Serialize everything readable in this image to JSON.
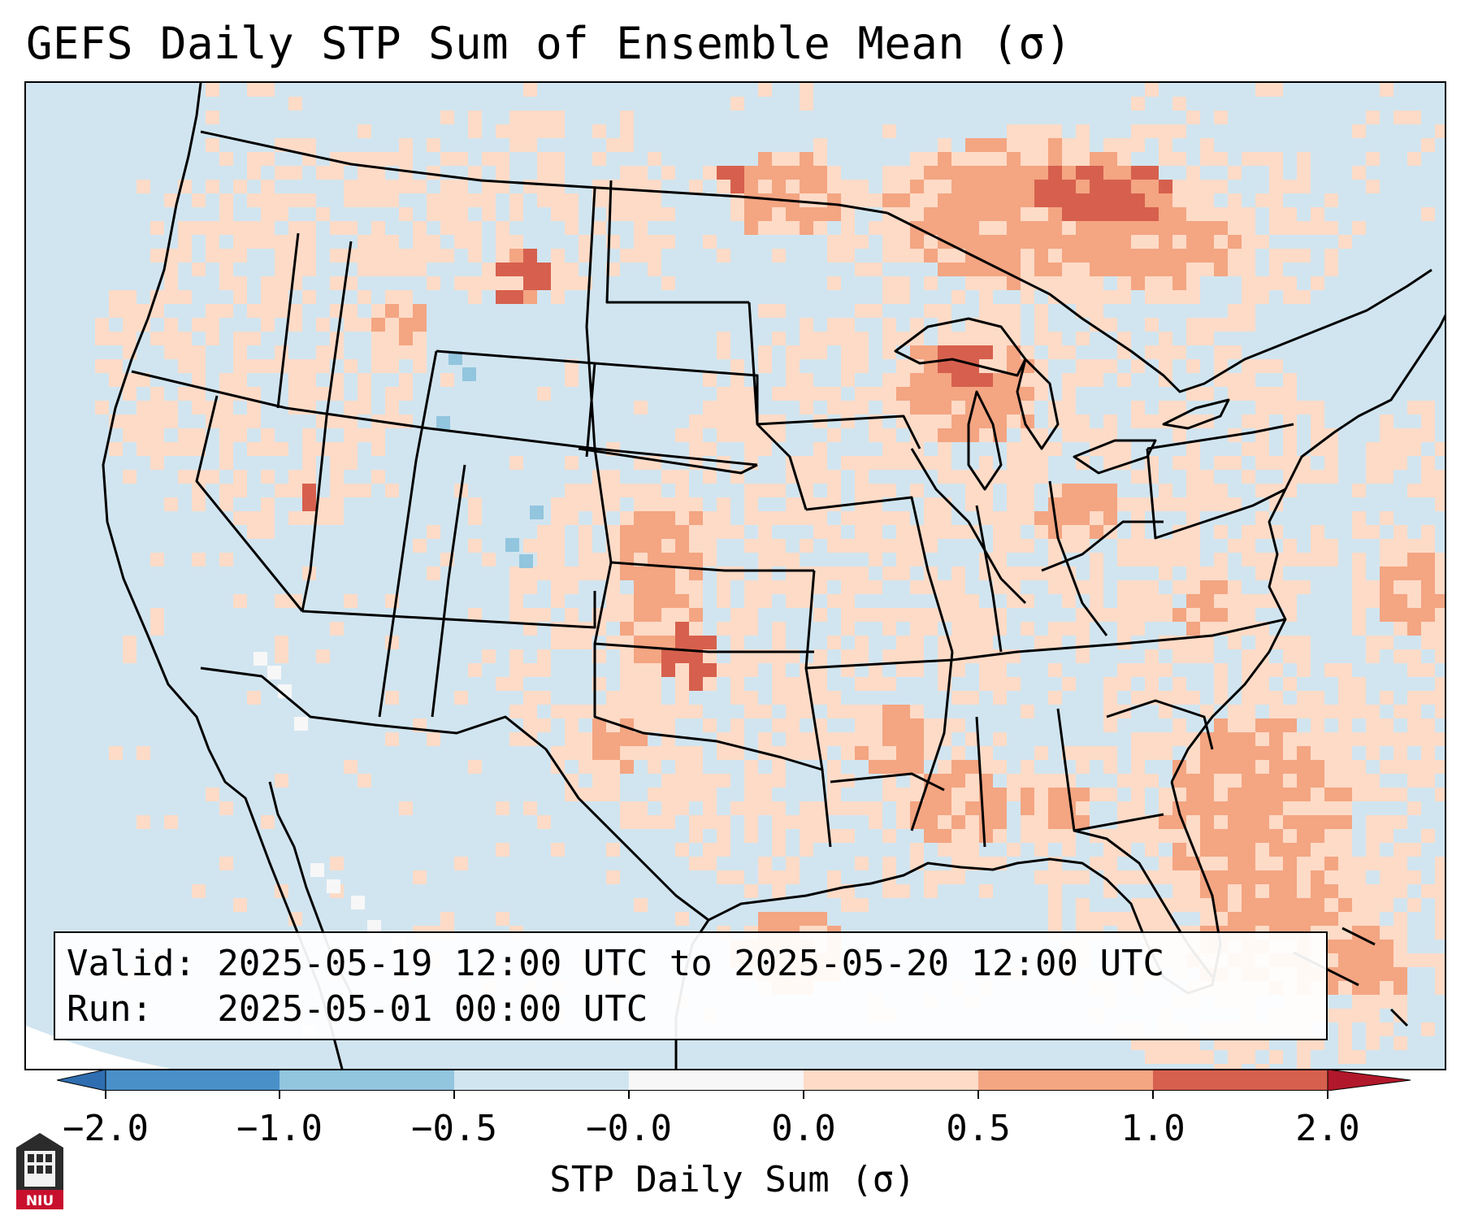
{
  "title": "GEFS Daily STP Sum of Ensemble Mean (σ)",
  "info": {
    "valid_line": "Valid: 2025-05-19 12:00 UTC to 2025-05-20 12:00 UTC",
    "run_line": "Run:   2025-05-01 00:00 UTC"
  },
  "colorbar": {
    "label": "STP Daily Sum (σ)",
    "ticks": [
      "−2.0",
      "−1.0",
      "−0.5",
      "−0.0",
      "0.0",
      "0.5",
      "1.0",
      "2.0"
    ],
    "bins": [
      {
        "min": -3.0,
        "max": -2.0,
        "color": "#2f6eb0"
      },
      {
        "min": -2.0,
        "max": -1.0,
        "color": "#4a90c8"
      },
      {
        "min": -1.0,
        "max": -0.5,
        "color": "#92c5de"
      },
      {
        "min": -0.5,
        "max": -0.0,
        "color": "#d1e5f0"
      },
      {
        "min": -0.0,
        "max": 0.0,
        "color": "#f7f7f7"
      },
      {
        "min": 0.0,
        "max": 0.5,
        "color": "#fddbc7"
      },
      {
        "min": 0.5,
        "max": 1.0,
        "color": "#f4a582"
      },
      {
        "min": 1.0,
        "max": 2.0,
        "color": "#d6604d"
      },
      {
        "min": 2.0,
        "max": 3.0,
        "color": "#b2182b"
      }
    ]
  },
  "colors": {
    "background": "#d1e5f0",
    "neutral": "#f7f7f7",
    "light_red": "#fddbc7",
    "medium_red": "#f4a582",
    "strong_red": "#d6604d",
    "extreme_red": "#b2182b",
    "light_blue": "#92c5de",
    "border": "#000000"
  },
  "logo": {
    "text": "NIU",
    "icon": "niu-logo-icon"
  }
}
